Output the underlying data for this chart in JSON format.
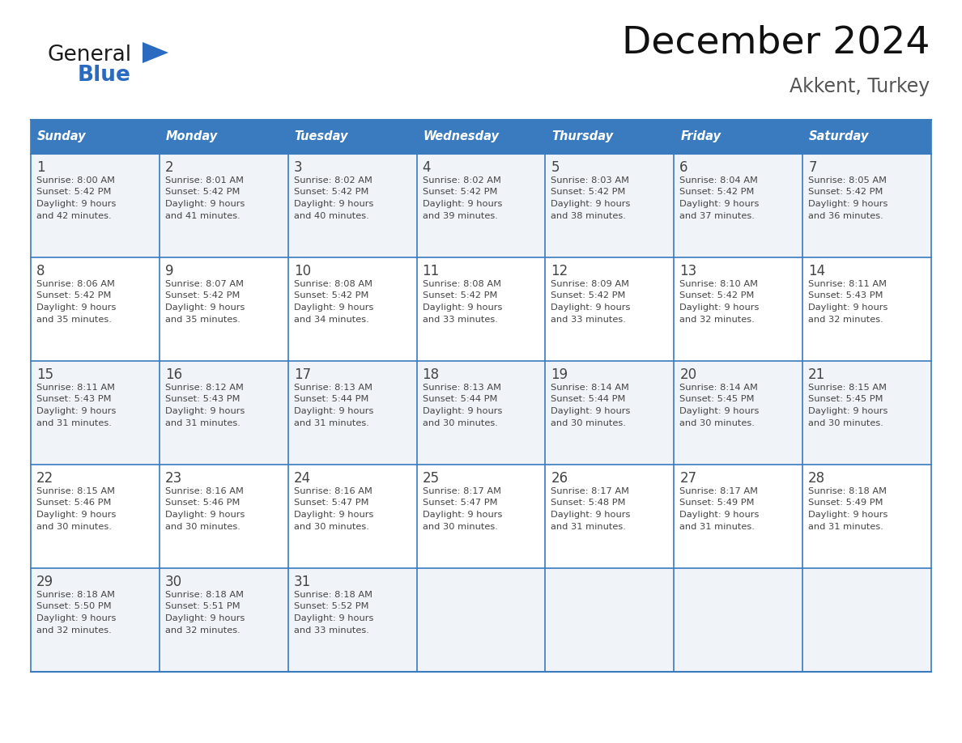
{
  "title": "December 2024",
  "subtitle": "Akkent, Turkey",
  "header_bg_color": "#3a7abf",
  "header_text_color": "#ffffff",
  "row_bg_colors": [
    "#f0f4f8",
    "#ffffff",
    "#f0f4f8",
    "#ffffff",
    "#f0f4f8"
  ],
  "day_headers": [
    "Sunday",
    "Monday",
    "Tuesday",
    "Wednesday",
    "Thursday",
    "Friday",
    "Saturday"
  ],
  "days": [
    {
      "day": 1,
      "col": 0,
      "row": 0,
      "sunrise": "8:00 AM",
      "sunset": "5:42 PM",
      "daylight_line1": "9 hours",
      "daylight_line2": "and 42 minutes."
    },
    {
      "day": 2,
      "col": 1,
      "row": 0,
      "sunrise": "8:01 AM",
      "sunset": "5:42 PM",
      "daylight_line1": "9 hours",
      "daylight_line2": "and 41 minutes."
    },
    {
      "day": 3,
      "col": 2,
      "row": 0,
      "sunrise": "8:02 AM",
      "sunset": "5:42 PM",
      "daylight_line1": "9 hours",
      "daylight_line2": "and 40 minutes."
    },
    {
      "day": 4,
      "col": 3,
      "row": 0,
      "sunrise": "8:02 AM",
      "sunset": "5:42 PM",
      "daylight_line1": "9 hours",
      "daylight_line2": "and 39 minutes."
    },
    {
      "day": 5,
      "col": 4,
      "row": 0,
      "sunrise": "8:03 AM",
      "sunset": "5:42 PM",
      "daylight_line1": "9 hours",
      "daylight_line2": "and 38 minutes."
    },
    {
      "day": 6,
      "col": 5,
      "row": 0,
      "sunrise": "8:04 AM",
      "sunset": "5:42 PM",
      "daylight_line1": "9 hours",
      "daylight_line2": "and 37 minutes."
    },
    {
      "day": 7,
      "col": 6,
      "row": 0,
      "sunrise": "8:05 AM",
      "sunset": "5:42 PM",
      "daylight_line1": "9 hours",
      "daylight_line2": "and 36 minutes."
    },
    {
      "day": 8,
      "col": 0,
      "row": 1,
      "sunrise": "8:06 AM",
      "sunset": "5:42 PM",
      "daylight_line1": "9 hours",
      "daylight_line2": "and 35 minutes."
    },
    {
      "day": 9,
      "col": 1,
      "row": 1,
      "sunrise": "8:07 AM",
      "sunset": "5:42 PM",
      "daylight_line1": "9 hours",
      "daylight_line2": "and 35 minutes."
    },
    {
      "day": 10,
      "col": 2,
      "row": 1,
      "sunrise": "8:08 AM",
      "sunset": "5:42 PM",
      "daylight_line1": "9 hours",
      "daylight_line2": "and 34 minutes."
    },
    {
      "day": 11,
      "col": 3,
      "row": 1,
      "sunrise": "8:08 AM",
      "sunset": "5:42 PM",
      "daylight_line1": "9 hours",
      "daylight_line2": "and 33 minutes."
    },
    {
      "day": 12,
      "col": 4,
      "row": 1,
      "sunrise": "8:09 AM",
      "sunset": "5:42 PM",
      "daylight_line1": "9 hours",
      "daylight_line2": "and 33 minutes."
    },
    {
      "day": 13,
      "col": 5,
      "row": 1,
      "sunrise": "8:10 AM",
      "sunset": "5:42 PM",
      "daylight_line1": "9 hours",
      "daylight_line2": "and 32 minutes."
    },
    {
      "day": 14,
      "col": 6,
      "row": 1,
      "sunrise": "8:11 AM",
      "sunset": "5:43 PM",
      "daylight_line1": "9 hours",
      "daylight_line2": "and 32 minutes."
    },
    {
      "day": 15,
      "col": 0,
      "row": 2,
      "sunrise": "8:11 AM",
      "sunset": "5:43 PM",
      "daylight_line1": "9 hours",
      "daylight_line2": "and 31 minutes."
    },
    {
      "day": 16,
      "col": 1,
      "row": 2,
      "sunrise": "8:12 AM",
      "sunset": "5:43 PM",
      "daylight_line1": "9 hours",
      "daylight_line2": "and 31 minutes."
    },
    {
      "day": 17,
      "col": 2,
      "row": 2,
      "sunrise": "8:13 AM",
      "sunset": "5:44 PM",
      "daylight_line1": "9 hours",
      "daylight_line2": "and 31 minutes."
    },
    {
      "day": 18,
      "col": 3,
      "row": 2,
      "sunrise": "8:13 AM",
      "sunset": "5:44 PM",
      "daylight_line1": "9 hours",
      "daylight_line2": "and 30 minutes."
    },
    {
      "day": 19,
      "col": 4,
      "row": 2,
      "sunrise": "8:14 AM",
      "sunset": "5:44 PM",
      "daylight_line1": "9 hours",
      "daylight_line2": "and 30 minutes."
    },
    {
      "day": 20,
      "col": 5,
      "row": 2,
      "sunrise": "8:14 AM",
      "sunset": "5:45 PM",
      "daylight_line1": "9 hours",
      "daylight_line2": "and 30 minutes."
    },
    {
      "day": 21,
      "col": 6,
      "row": 2,
      "sunrise": "8:15 AM",
      "sunset": "5:45 PM",
      "daylight_line1": "9 hours",
      "daylight_line2": "and 30 minutes."
    },
    {
      "day": 22,
      "col": 0,
      "row": 3,
      "sunrise": "8:15 AM",
      "sunset": "5:46 PM",
      "daylight_line1": "9 hours",
      "daylight_line2": "and 30 minutes."
    },
    {
      "day": 23,
      "col": 1,
      "row": 3,
      "sunrise": "8:16 AM",
      "sunset": "5:46 PM",
      "daylight_line1": "9 hours",
      "daylight_line2": "and 30 minutes."
    },
    {
      "day": 24,
      "col": 2,
      "row": 3,
      "sunrise": "8:16 AM",
      "sunset": "5:47 PM",
      "daylight_line1": "9 hours",
      "daylight_line2": "and 30 minutes."
    },
    {
      "day": 25,
      "col": 3,
      "row": 3,
      "sunrise": "8:17 AM",
      "sunset": "5:47 PM",
      "daylight_line1": "9 hours",
      "daylight_line2": "and 30 minutes."
    },
    {
      "day": 26,
      "col": 4,
      "row": 3,
      "sunrise": "8:17 AM",
      "sunset": "5:48 PM",
      "daylight_line1": "9 hours",
      "daylight_line2": "and 31 minutes."
    },
    {
      "day": 27,
      "col": 5,
      "row": 3,
      "sunrise": "8:17 AM",
      "sunset": "5:49 PM",
      "daylight_line1": "9 hours",
      "daylight_line2": "and 31 minutes."
    },
    {
      "day": 28,
      "col": 6,
      "row": 3,
      "sunrise": "8:18 AM",
      "sunset": "5:49 PM",
      "daylight_line1": "9 hours",
      "daylight_line2": "and 31 minutes."
    },
    {
      "day": 29,
      "col": 0,
      "row": 4,
      "sunrise": "8:18 AM",
      "sunset": "5:50 PM",
      "daylight_line1": "9 hours",
      "daylight_line2": "and 32 minutes."
    },
    {
      "day": 30,
      "col": 1,
      "row": 4,
      "sunrise": "8:18 AM",
      "sunset": "5:51 PM",
      "daylight_line1": "9 hours",
      "daylight_line2": "and 32 minutes."
    },
    {
      "day": 31,
      "col": 2,
      "row": 4,
      "sunrise": "8:18 AM",
      "sunset": "5:52 PM",
      "daylight_line1": "9 hours",
      "daylight_line2": "and 33 minutes."
    }
  ],
  "n_rows": 5,
  "n_cols": 7,
  "title_fontsize": 34,
  "subtitle_fontsize": 17,
  "header_fontsize": 10.5,
  "day_num_fontsize": 12,
  "cell_text_fontsize": 8.2,
  "border_color": "#3a7abf",
  "text_color": "#444444",
  "logo_general_color": "#1a1a1a",
  "logo_blue_color": "#2a6abf",
  "logo_triangle_color": "#2a6abf"
}
